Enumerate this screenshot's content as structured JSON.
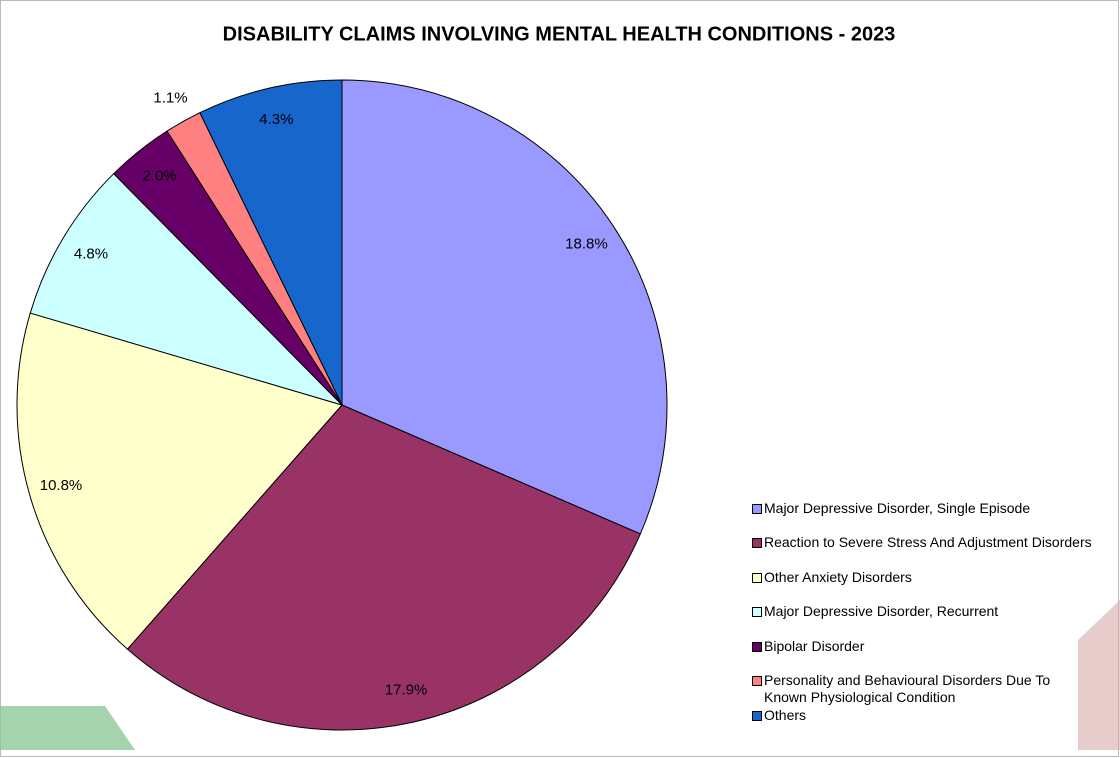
{
  "chart_data": {
    "type": "pie",
    "title": "DISABILITY CLAIMS INVOLVING MENTAL HEALTH CONDITIONS - 2023",
    "categories": [
      "Major Depressive Disorder, Single Episode",
      "Reaction to Severe Stress And Adjustment Disorders",
      "Other Anxiety Disorders",
      "Major Depressive Disorder, Recurrent",
      "Bipolar Disorder",
      "Personality and Behavioural Disorders Due To Known Physiological Condition",
      "Others"
    ],
    "values": [
      18.8,
      17.9,
      10.8,
      4.8,
      2.0,
      1.1,
      4.3
    ],
    "value_labels": [
      "18.8%",
      "17.9%",
      "10.8%",
      "4.8%",
      "2.0%",
      "1.1%",
      "4.3%"
    ],
    "colors": [
      "#9999ff",
      "#993366",
      "#ffffcc",
      "#ccffff",
      "#660066",
      "#ff8080",
      "#1766cc"
    ],
    "legend": "right"
  }
}
